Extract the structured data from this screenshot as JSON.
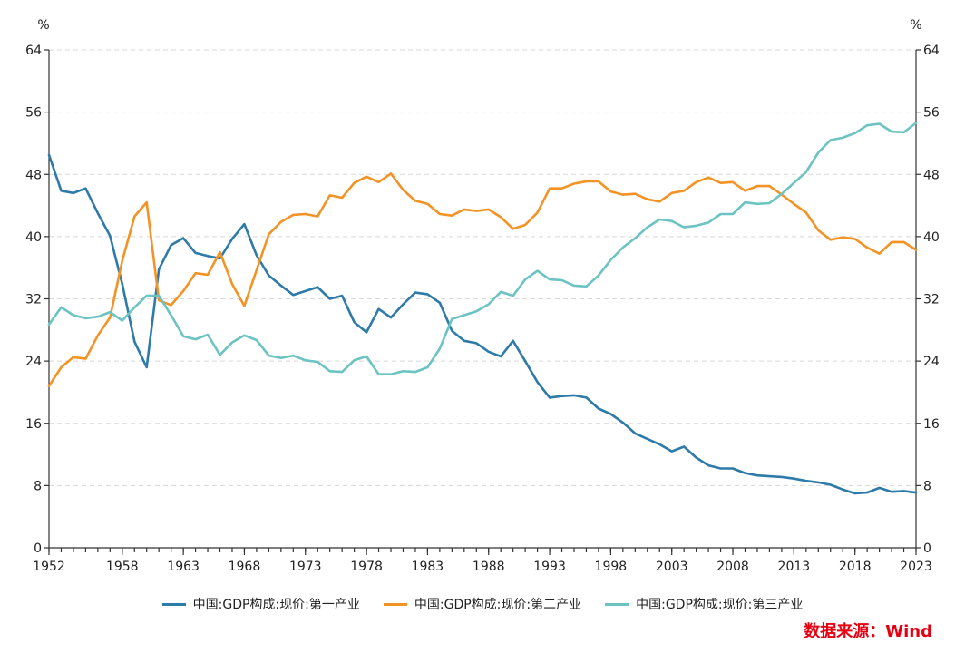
{
  "source_label": "数据来源：Wind",
  "chart_data": {
    "type": "line",
    "y_unit_left": "%",
    "y_unit_right": "%",
    "ylim": [
      0,
      64
    ],
    "yticks": [
      0,
      8,
      16,
      24,
      32,
      40,
      48,
      56,
      64
    ],
    "xlim": [
      1952,
      2023
    ],
    "xticks": [
      1952,
      1958,
      1963,
      1968,
      1973,
      1978,
      1983,
      1988,
      1993,
      1998,
      2003,
      2008,
      2013,
      2018,
      2023
    ],
    "grid": true,
    "legend_position": "bottom",
    "x": [
      1952,
      1953,
      1954,
      1955,
      1956,
      1957,
      1958,
      1959,
      1960,
      1961,
      1962,
      1963,
      1964,
      1965,
      1966,
      1967,
      1968,
      1969,
      1970,
      1971,
      1972,
      1973,
      1974,
      1975,
      1976,
      1977,
      1978,
      1979,
      1980,
      1981,
      1982,
      1983,
      1984,
      1985,
      1986,
      1987,
      1988,
      1989,
      1990,
      1991,
      1992,
      1993,
      1994,
      1995,
      1996,
      1997,
      1998,
      1999,
      2000,
      2001,
      2002,
      2003,
      2004,
      2005,
      2006,
      2007,
      2008,
      2009,
      2010,
      2011,
      2012,
      2013,
      2014,
      2015,
      2016,
      2017,
      2018,
      2019,
      2020,
      2021,
      2022,
      2023
    ],
    "series": [
      {
        "name": "中国:GDP构成:现价:第一产业",
        "color": "#2e7aa8",
        "values": [
          50.5,
          45.9,
          45.6,
          46.2,
          43.0,
          40.1,
          33.9,
          26.5,
          23.2,
          35.8,
          38.9,
          39.8,
          37.9,
          37.5,
          37.2,
          39.7,
          41.6,
          37.6,
          35.0,
          33.7,
          32.5,
          33.0,
          33.5,
          32.0,
          32.4,
          29.0,
          27.7,
          30.7,
          29.6,
          31.3,
          32.8,
          32.6,
          31.5,
          27.9,
          26.6,
          26.3,
          25.2,
          24.6,
          26.6,
          24.0,
          21.3,
          19.3,
          19.5,
          19.6,
          19.3,
          17.9,
          17.2,
          16.1,
          14.7,
          14.0,
          13.3,
          12.4,
          13.0,
          11.6,
          10.6,
          10.2,
          10.2,
          9.6,
          9.3,
          9.2,
          9.1,
          8.9,
          8.6,
          8.4,
          8.1,
          7.5,
          7.0,
          7.1,
          7.7,
          7.2,
          7.3,
          7.1
        ]
      },
      {
        "name": "中国:GDP构成:现价:第二产业",
        "color": "#f39325",
        "values": [
          20.8,
          23.2,
          24.5,
          24.3,
          27.3,
          29.6,
          36.9,
          42.6,
          44.4,
          31.8,
          31.2,
          33.0,
          35.3,
          35.1,
          38.0,
          33.9,
          31.1,
          35.7,
          40.3,
          41.9,
          42.8,
          42.9,
          42.6,
          45.3,
          45.0,
          46.9,
          47.7,
          47.0,
          48.1,
          46.0,
          44.6,
          44.2,
          42.9,
          42.7,
          43.5,
          43.3,
          43.5,
          42.5,
          41.0,
          41.5,
          43.1,
          46.2,
          46.2,
          46.8,
          47.1,
          47.1,
          45.8,
          45.4,
          45.5,
          44.8,
          44.5,
          45.6,
          45.9,
          47.0,
          47.6,
          46.9,
          47.0,
          45.9,
          46.5,
          46.5,
          45.4,
          44.2,
          43.1,
          40.8,
          39.6,
          39.9,
          39.7,
          38.6,
          37.8,
          39.3,
          39.3,
          38.3
        ]
      },
      {
        "name": "中国:GDP构成:现价:第三产业",
        "color": "#6cc3c2",
        "values": [
          28.7,
          30.9,
          29.9,
          29.5,
          29.7,
          30.3,
          29.2,
          30.9,
          32.4,
          32.4,
          29.9,
          27.2,
          26.8,
          27.4,
          24.8,
          26.4,
          27.3,
          26.7,
          24.7,
          24.4,
          24.7,
          24.1,
          23.9,
          22.7,
          22.6,
          24.1,
          24.6,
          22.3,
          22.3,
          22.7,
          22.6,
          23.2,
          25.6,
          29.4,
          29.9,
          30.4,
          31.3,
          32.9,
          32.4,
          34.5,
          35.6,
          34.5,
          34.4,
          33.7,
          33.6,
          35.0,
          37.0,
          38.6,
          39.8,
          41.2,
          42.2,
          42.0,
          41.2,
          41.4,
          41.8,
          42.9,
          42.9,
          44.4,
          44.2,
          44.3,
          45.5,
          46.9,
          48.3,
          50.8,
          52.4,
          52.7,
          53.3,
          54.3,
          54.5,
          53.5,
          53.4,
          54.6
        ]
      }
    ]
  }
}
